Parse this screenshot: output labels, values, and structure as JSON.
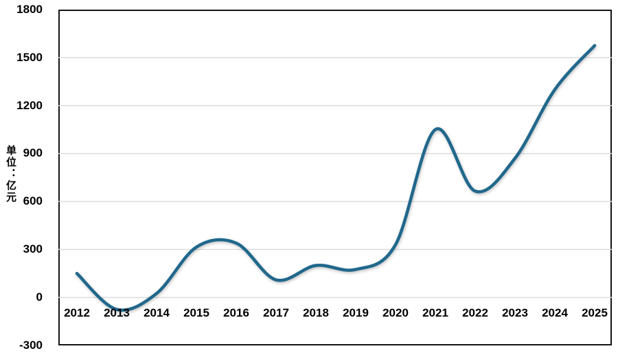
{
  "chart": {
    "y_axis_title": "单位：亿元",
    "y_tick_labels": [
      "1800",
      "1500",
      "1200",
      "900",
      "600",
      "300",
      "0",
      "-300"
    ],
    "line_color": "#21688c",
    "gridline_color": "#d9d9d9",
    "border_color": "#141414"
  },
  "chart_data": {
    "type": "line",
    "x": [
      "2012",
      "2013",
      "2014",
      "2015",
      "2016",
      "2017",
      "2018",
      "2019",
      "2020",
      "2021",
      "2022",
      "2023",
      "2024",
      "2025"
    ],
    "values": [
      150,
      -75,
      25,
      315,
      340,
      110,
      200,
      175,
      330,
      1050,
      665,
      870,
      1300,
      1575
    ],
    "title": "",
    "xlabel": "",
    "ylabel": "单位：亿元",
    "ylim": [
      -300,
      1800
    ],
    "ytick_step": 300,
    "grid": true,
    "legend": false,
    "smooth": true,
    "line_color": "#21688c"
  }
}
